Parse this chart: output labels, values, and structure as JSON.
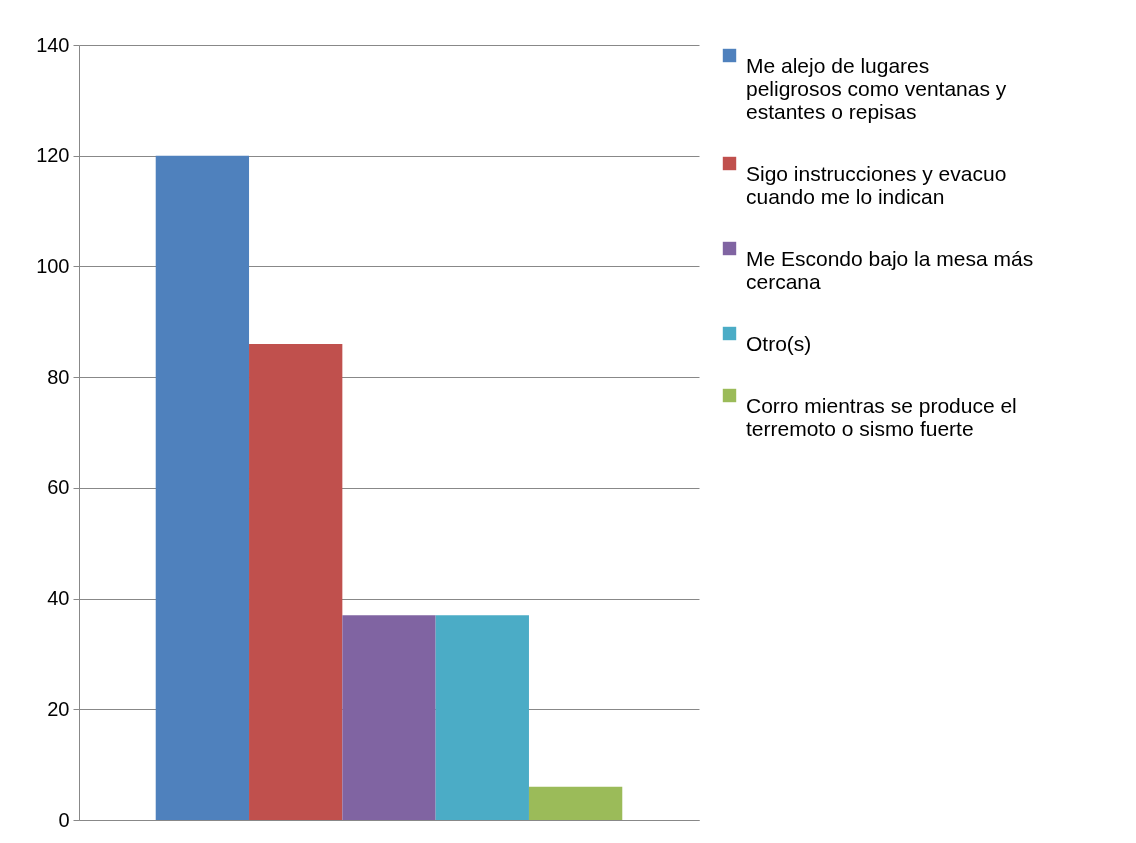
{
  "chart_data": {
    "type": "bar",
    "categories": [
      null
    ],
    "series": [
      {
        "name": "Me alejo de lugares peligrosos como ventanas y estantes o repisas",
        "color": "#4f81bd",
        "values": [
          120
        ]
      },
      {
        "name": "Sigo instrucciones y evacuo cuando me lo indican",
        "color": "#c0504d",
        "values": [
          86
        ]
      },
      {
        "name": "Me Escondo bajo la mesa más cercana",
        "color": "#8064a2",
        "values": [
          37
        ]
      },
      {
        "name": "Otro(s)",
        "color": "#4bacc6",
        "values": [
          37
        ]
      },
      {
        "name": "Corro mientras se produce el terremoto o sismo fuerte",
        "color": "#9bbb59",
        "values": [
          6
        ]
      }
    ],
    "ylim": [
      0,
      140
    ],
    "yticks": [
      0,
      20,
      40,
      60,
      80,
      100,
      120,
      140
    ],
    "grid": "y",
    "legend": "right"
  }
}
